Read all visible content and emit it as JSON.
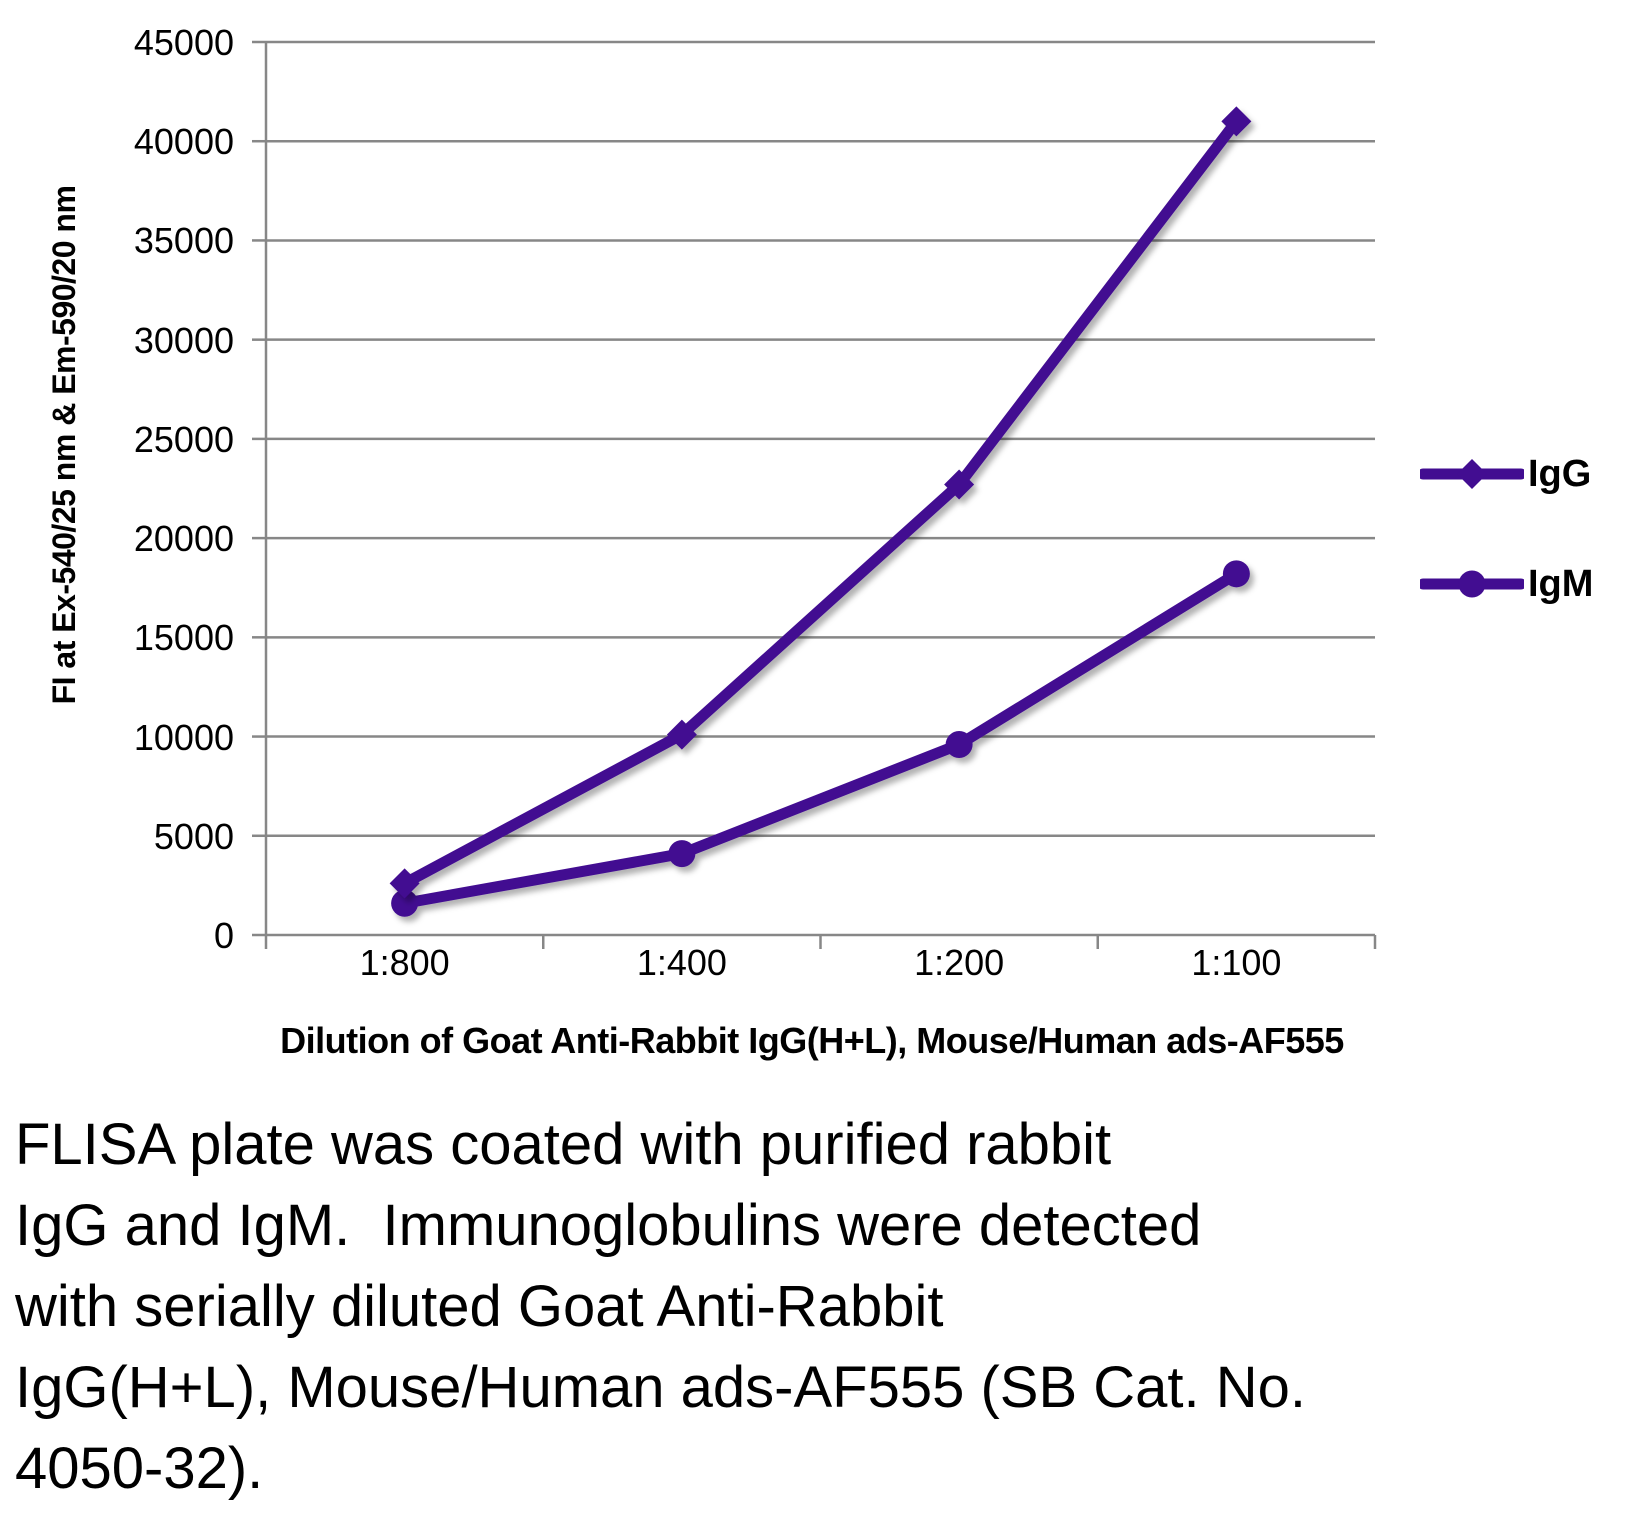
{
  "chart_data": {
    "type": "line",
    "categories": [
      "1:800",
      "1:400",
      "1:200",
      "1:100"
    ],
    "series": [
      {
        "name": "IgG",
        "marker": "diamond",
        "values": [
          2600,
          10100,
          22700,
          41000
        ]
      },
      {
        "name": "IgM",
        "marker": "circle",
        "values": [
          1600,
          4100,
          9600,
          18200
        ]
      }
    ],
    "xlabel": "Dilution of Goat Anti-Rabbit IgG(H+L), Mouse/Human ads-AF555",
    "ylabel": "FI at Ex-540/25 nm & Em-590/20 nm",
    "ylim": [
      0,
      45000
    ],
    "yticks": [
      0,
      5000,
      10000,
      15000,
      20000,
      25000,
      30000,
      35000,
      40000,
      45000
    ],
    "grid": true,
    "legend_position": "right"
  },
  "colors": {
    "series": "#420D91",
    "axis": "#878787",
    "text": "#000000"
  },
  "caption_lines": [
    "FLISA plate was coated with purified rabbit",
    "IgG and IgM.  Immunoglobulins were detected",
    "with serially diluted Goat Anti-Rabbit",
    "IgG(H+L), Mouse/Human ads-AF555 (SB Cat. No.",
    "4050-32)."
  ]
}
